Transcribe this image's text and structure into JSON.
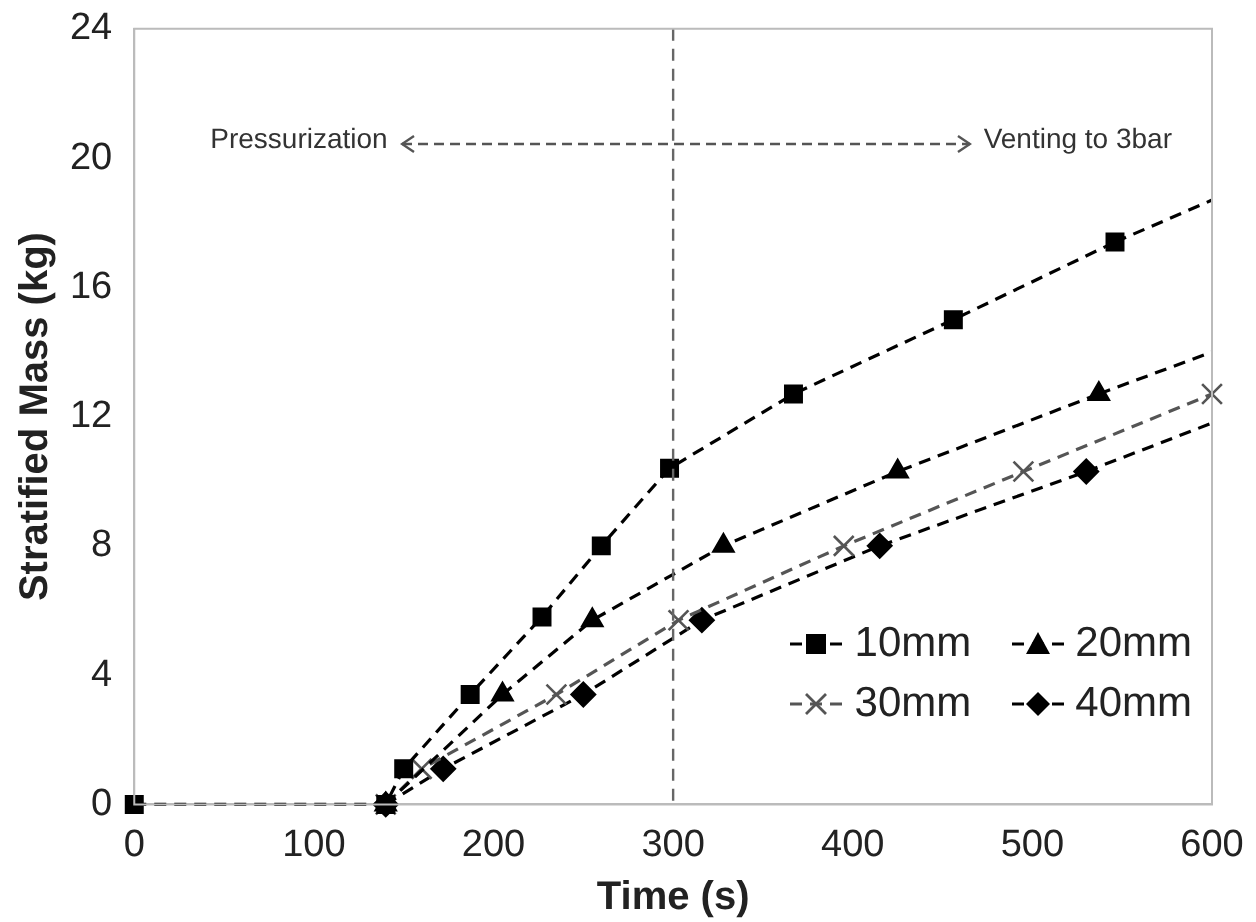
{
  "chart_data": {
    "type": "line",
    "xlabel": "Time (s)",
    "ylabel": "Stratified Mass (kg)",
    "xlim": [
      0,
      600
    ],
    "xticks": [
      0,
      100,
      200,
      300,
      400,
      500,
      600
    ],
    "ylim": [
      0,
      24
    ],
    "yticks": [
      0,
      4,
      8,
      12,
      16,
      20,
      24
    ],
    "grid": false,
    "legend": "bottom right",
    "line_style": "dashed",
    "series": [
      {
        "name": "10mm",
        "color": "#000000",
        "marker": "square",
        "x": [
          0,
          140,
          150,
          187,
          227,
          260,
          298,
          367,
          456,
          546
        ],
        "values": [
          0,
          0,
          1.1,
          3.4,
          5.8,
          8.0,
          10.4,
          12.7,
          15.0,
          17.4
        ]
      },
      {
        "name": "20mm",
        "color": "#000000",
        "marker": "triangle",
        "x": [
          140,
          205,
          255,
          328,
          425,
          537
        ],
        "values": [
          0,
          3.4,
          5.7,
          8.0,
          10.3,
          12.7
        ]
      },
      {
        "name": "30mm",
        "color": "#555555",
        "marker": "cross",
        "x": [
          140,
          160,
          235,
          303,
          395,
          495,
          600
        ],
        "values": [
          0,
          1.1,
          3.4,
          5.7,
          8.0,
          10.3,
          12.7
        ]
      },
      {
        "name": "40mm",
        "color": "#000000",
        "marker": "diamond",
        "x": [
          140,
          172,
          250,
          316,
          415,
          530
        ],
        "values": [
          0,
          1.1,
          3.4,
          5.7,
          8.0,
          10.3
        ]
      },
      {
        "color": "#000000",
        "marker": "none",
        "x": [
          546,
          600
        ],
        "values": [
          17.4,
          18.7
        ]
      },
      {
        "color": "#000000",
        "marker": "none",
        "x": [
          537,
          600
        ],
        "values": [
          12.7,
          14.0
        ]
      },
      {
        "color": "#000000",
        "marker": "none",
        "x": [
          530,
          600
        ],
        "values": [
          10.3,
          11.8
        ]
      }
    ],
    "ref_lines": [
      {
        "axis": "x",
        "value": 300,
        "color": "#666666",
        "line_style": "dashed"
      }
    ],
    "annotations": [
      "Pressurization",
      "Venting to 3bar"
    ]
  }
}
